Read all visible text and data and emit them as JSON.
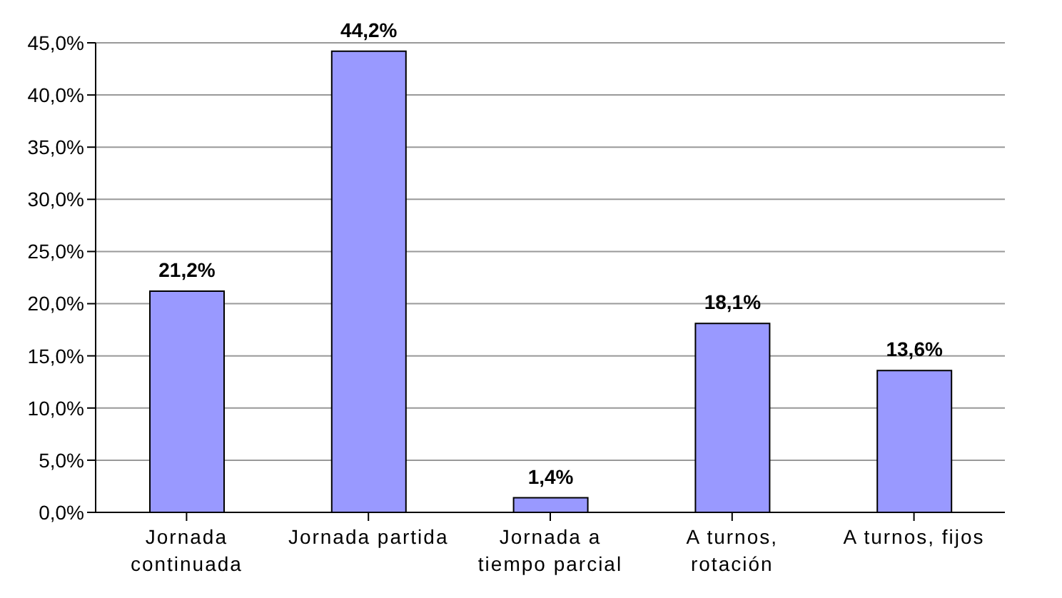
{
  "chart_data": {
    "type": "bar",
    "categories": [
      "Jornada continuada",
      "Jornada partida",
      "Jornada a tiempo parcial",
      "A turnos, rotación",
      "A turnos, fijos"
    ],
    "values": [
      21.2,
      44.2,
      1.4,
      18.1,
      13.6
    ],
    "value_labels": [
      "21,2%",
      "44,2%",
      "1,4%",
      "18,1%",
      "13,6%"
    ],
    "color": "#9999ff",
    "ylim": [
      0,
      45
    ],
    "yticks": [
      {
        "value": 0,
        "label": "0,0%"
      },
      {
        "value": 5,
        "label": "5,0%"
      },
      {
        "value": 10,
        "label": "10,0%"
      },
      {
        "value": 15,
        "label": "15,0%"
      },
      {
        "value": 20,
        "label": "20,0%"
      },
      {
        "value": 25,
        "label": "25,0%"
      },
      {
        "value": 30,
        "label": "30,0%"
      },
      {
        "value": 35,
        "label": "35,0%"
      },
      {
        "value": 40,
        "label": "40,0%"
      },
      {
        "value": 45,
        "label": "45,0%"
      }
    ],
    "grid": "y",
    "legend": false
  }
}
